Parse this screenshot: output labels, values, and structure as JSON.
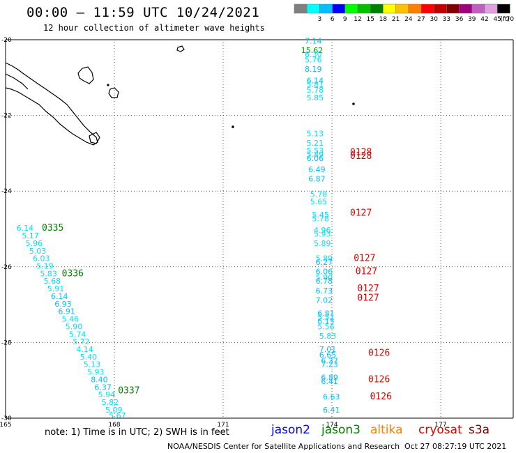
{
  "header": {
    "title": "00:00 – 11:59 UTC 10/24/2021",
    "subtitle": "12 hour collection of altimeter wave heights"
  },
  "legend": {
    "unit_label": "(ft)",
    "bins": [
      {
        "label": "",
        "color": "#808080"
      },
      {
        "label": "3",
        "color": "#00ffff"
      },
      {
        "label": "6",
        "color": "#00bfff"
      },
      {
        "label": "9",
        "color": "#0000ff"
      },
      {
        "label": "12",
        "color": "#00ff00"
      },
      {
        "label": "15",
        "color": "#00c000"
      },
      {
        "label": "18",
        "color": "#008000"
      },
      {
        "label": "21",
        "color": "#ffff00"
      },
      {
        "label": "24",
        "color": "#ffc000"
      },
      {
        "label": "27",
        "color": "#ff8000"
      },
      {
        "label": "30",
        "color": "#ff0000"
      },
      {
        "label": "33",
        "color": "#c00000"
      },
      {
        "label": "36",
        "color": "#800000"
      },
      {
        "label": "39",
        "color": "#a00080"
      },
      {
        "label": "42",
        "color": "#c060c0"
      },
      {
        "label": "45",
        "color": "#e0a0e0"
      },
      {
        "label": "70",
        "color": "#000000"
      }
    ]
  },
  "axes": {
    "lat_labels": [
      "-20",
      "-22",
      "-24",
      "-26",
      "-28",
      "-30"
    ],
    "lon_labels": [
      "165",
      "168",
      "171",
      "174",
      "177"
    ]
  },
  "chart_data": {
    "type": "scatter",
    "xlabel": "",
    "ylabel": "",
    "xlim": [
      165,
      179
    ],
    "ylim": [
      -30,
      -20
    ],
    "units": "ft",
    "colors": {
      "c6": "#00bfff",
      "c3": "#00e0ff",
      "c15": "#00a000",
      "time_green": "#008000",
      "time_red": "#e00000"
    },
    "tracks": [
      {
        "name": "jason3",
        "readings": [
          {
            "lon": 165.3,
            "lat": -25.05,
            "value": "6.14",
            "color": "c3"
          },
          {
            "lon": 165.45,
            "lat": -25.25,
            "value": "5.17",
            "color": "c3"
          },
          {
            "lon": 165.55,
            "lat": -25.45,
            "value": "5.96",
            "color": "c3"
          },
          {
            "lon": 165.65,
            "lat": -25.65,
            "value": "5.03",
            "color": "c3"
          },
          {
            "lon": 165.75,
            "lat": -25.85,
            "value": "6.03",
            "color": "c3"
          },
          {
            "lon": 165.85,
            "lat": -26.05,
            "value": "5.19",
            "color": "c3"
          },
          {
            "lon": 165.95,
            "lat": -26.25,
            "value": "5.83",
            "color": "c3"
          },
          {
            "lon": 166.05,
            "lat": -26.45,
            "value": "5.68",
            "color": "c3"
          },
          {
            "lon": 166.15,
            "lat": -26.65,
            "value": "5.91",
            "color": "c3"
          },
          {
            "lon": 166.25,
            "lat": -26.85,
            "value": "6.14",
            "color": "c6"
          },
          {
            "lon": 166.35,
            "lat": -27.05,
            "value": "6.93",
            "color": "c6"
          },
          {
            "lon": 166.45,
            "lat": -27.25,
            "value": "6.91",
            "color": "c6"
          },
          {
            "lon": 166.55,
            "lat": -27.45,
            "value": "5.46",
            "color": "c3"
          },
          {
            "lon": 166.65,
            "lat": -27.65,
            "value": "5.90",
            "color": "c3"
          },
          {
            "lon": 166.75,
            "lat": -27.85,
            "value": "5.74",
            "color": "c3"
          },
          {
            "lon": 166.85,
            "lat": -28.05,
            "value": "5.72",
            "color": "c3"
          },
          {
            "lon": 166.95,
            "lat": -28.25,
            "value": "4.14",
            "color": "c3"
          },
          {
            "lon": 167.05,
            "lat": -28.45,
            "value": "5.40",
            "color": "c3"
          },
          {
            "lon": 167.15,
            "lat": -28.65,
            "value": "5.13",
            "color": "c3"
          },
          {
            "lon": 167.25,
            "lat": -28.85,
            "value": "5.93",
            "color": "c3"
          },
          {
            "lon": 167.35,
            "lat": -29.05,
            "value": "8.40",
            "color": "c6"
          },
          {
            "lon": 167.45,
            "lat": -29.25,
            "value": "6.37",
            "color": "c6"
          },
          {
            "lon": 167.55,
            "lat": -29.45,
            "value": "5.94",
            "color": "c3"
          },
          {
            "lon": 167.65,
            "lat": -29.65,
            "value": "5.82",
            "color": "c3"
          },
          {
            "lon": 167.75,
            "lat": -29.85,
            "value": "5.09",
            "color": "c3"
          },
          {
            "lon": 167.85,
            "lat": -30.0,
            "value": "5.67",
            "color": "c3"
          }
        ],
        "times": [
          {
            "lon": 166.0,
            "lat": -25.05,
            "value": "0335",
            "color": "time_green"
          },
          {
            "lon": 166.55,
            "lat": -26.25,
            "value": "0336",
            "color": "time_green"
          },
          {
            "lon": 168.1,
            "lat": -29.35,
            "value": "0337",
            "color": "time_green"
          }
        ]
      },
      {
        "name": "cryosat",
        "readings": [
          {
            "lon": 173.25,
            "lat": -20.1,
            "value": "7.14",
            "color": "c6"
          },
          {
            "lon": 173.15,
            "lat": -20.35,
            "value": "15.62",
            "color": "c15"
          },
          {
            "lon": 173.25,
            "lat": -20.45,
            "value": "6.30",
            "color": "c3"
          },
          {
            "lon": 173.25,
            "lat": -20.6,
            "value": "5.76",
            "color": "c3"
          },
          {
            "lon": 173.25,
            "lat": -20.85,
            "value": "8.19",
            "color": "c6"
          },
          {
            "lon": 173.3,
            "lat": -21.15,
            "value": "6.14",
            "color": "c6"
          },
          {
            "lon": 173.3,
            "lat": -21.25,
            "value": "5.81",
            "color": "c3"
          },
          {
            "lon": 173.3,
            "lat": -21.4,
            "value": "5.78",
            "color": "c3"
          },
          {
            "lon": 173.3,
            "lat": -21.6,
            "value": "5.85",
            "color": "c3"
          },
          {
            "lon": 173.3,
            "lat": -22.55,
            "value": "5.13",
            "color": "c3"
          },
          {
            "lon": 173.3,
            "lat": -22.8,
            "value": "5.21",
            "color": "c3"
          },
          {
            "lon": 173.3,
            "lat": -23.0,
            "value": "5.53",
            "color": "c3"
          },
          {
            "lon": 173.3,
            "lat": -23.1,
            "value": "5.89",
            "color": "c3"
          },
          {
            "lon": 173.3,
            "lat": -23.2,
            "value": "6.06",
            "color": "c6"
          },
          {
            "lon": 173.35,
            "lat": -23.5,
            "value": "6.49",
            "color": "c6"
          },
          {
            "lon": 173.35,
            "lat": -23.75,
            "value": "6.87",
            "color": "c6"
          },
          {
            "lon": 173.4,
            "lat": -24.15,
            "value": "5.78",
            "color": "c3"
          },
          {
            "lon": 173.4,
            "lat": -24.35,
            "value": "5.65",
            "color": "c3"
          },
          {
            "lon": 173.45,
            "lat": -24.7,
            "value": "5.45",
            "color": "c3"
          },
          {
            "lon": 173.45,
            "lat": -24.8,
            "value": "5.78",
            "color": "c3"
          },
          {
            "lon": 173.5,
            "lat": -25.1,
            "value": "4.96",
            "color": "c3"
          },
          {
            "lon": 173.5,
            "lat": -25.2,
            "value": "5.93",
            "color": "c3"
          },
          {
            "lon": 173.5,
            "lat": -25.45,
            "value": "5.89",
            "color": "c3"
          },
          {
            "lon": 173.55,
            "lat": -25.85,
            "value": "5.89",
            "color": "c3"
          },
          {
            "lon": 173.55,
            "lat": -25.95,
            "value": "6.27",
            "color": "c6"
          },
          {
            "lon": 173.55,
            "lat": -26.2,
            "value": "6.06",
            "color": "c6"
          },
          {
            "lon": 173.55,
            "lat": -26.35,
            "value": "5.90",
            "color": "c3"
          },
          {
            "lon": 173.55,
            "lat": -26.45,
            "value": "6.78",
            "color": "c6"
          },
          {
            "lon": 173.55,
            "lat": -26.7,
            "value": "6.73",
            "color": "c6"
          },
          {
            "lon": 173.55,
            "lat": -26.95,
            "value": "7.02",
            "color": "c6"
          },
          {
            "lon": 173.6,
            "lat": -27.3,
            "value": "6.81",
            "color": "c6"
          },
          {
            "lon": 173.6,
            "lat": -27.4,
            "value": "5.51",
            "color": "c3"
          },
          {
            "lon": 173.6,
            "lat": -27.5,
            "value": "6.15",
            "color": "c6"
          },
          {
            "lon": 173.6,
            "lat": -27.65,
            "value": "5.56",
            "color": "c3"
          },
          {
            "lon": 173.65,
            "lat": -27.9,
            "value": "5.83",
            "color": "c3"
          },
          {
            "lon": 173.65,
            "lat": -28.25,
            "value": "7.01",
            "color": "c6"
          },
          {
            "lon": 173.65,
            "lat": -28.4,
            "value": "6.65",
            "color": "c6"
          },
          {
            "lon": 173.7,
            "lat": -28.55,
            "value": "6.37",
            "color": "c6"
          },
          {
            "lon": 173.7,
            "lat": -28.65,
            "value": "7.23",
            "color": "c6"
          },
          {
            "lon": 173.7,
            "lat": -29.0,
            "value": "6.89",
            "color": "c6"
          },
          {
            "lon": 173.7,
            "lat": -29.1,
            "value": "6.41",
            "color": "c6"
          },
          {
            "lon": 173.75,
            "lat": -29.5,
            "value": "6.63",
            "color": "c6"
          },
          {
            "lon": 173.75,
            "lat": -29.85,
            "value": "6.41",
            "color": "c6"
          }
        ],
        "times": [
          {
            "lon": 174.5,
            "lat": -23.05,
            "value": "0128",
            "color": "time_red"
          },
          {
            "lon": 174.5,
            "lat": -23.15,
            "value": "0128",
            "color": "time_red"
          },
          {
            "lon": 174.5,
            "lat": -24.65,
            "value": "0127",
            "color": "time_red"
          },
          {
            "lon": 174.6,
            "lat": -25.85,
            "value": "0127",
            "color": "time_red"
          },
          {
            "lon": 174.65,
            "lat": -26.2,
            "value": "0127",
            "color": "time_red"
          },
          {
            "lon": 174.7,
            "lat": -26.65,
            "value": "0127",
            "color": "time_red"
          },
          {
            "lon": 174.7,
            "lat": -26.9,
            "value": "0127",
            "color": "time_red"
          },
          {
            "lon": 175.0,
            "lat": -28.35,
            "value": "0126",
            "color": "time_red"
          },
          {
            "lon": 175.0,
            "lat": -29.05,
            "value": "0126",
            "color": "time_red"
          },
          {
            "lon": 175.05,
            "lat": -29.5,
            "value": "0126",
            "color": "time_red"
          }
        ]
      }
    ]
  },
  "footer": {
    "notes": "note: 1) Time is in UTC; 2) SWH is in feet",
    "satellites": [
      {
        "label": "jason2",
        "color": "#0000ff"
      },
      {
        "label": "jason3",
        "color": "#008000"
      },
      {
        "label": "altika",
        "color": "#ff8000"
      },
      {
        "label": "cryosat",
        "color": "#e00000"
      },
      {
        "label": "s3a",
        "color": "#800000"
      }
    ],
    "credit": "NOAA/NESDIS Center for Satellite Applications and Research",
    "timestamp": "Oct 27 08:27:19 UTC 2021"
  }
}
